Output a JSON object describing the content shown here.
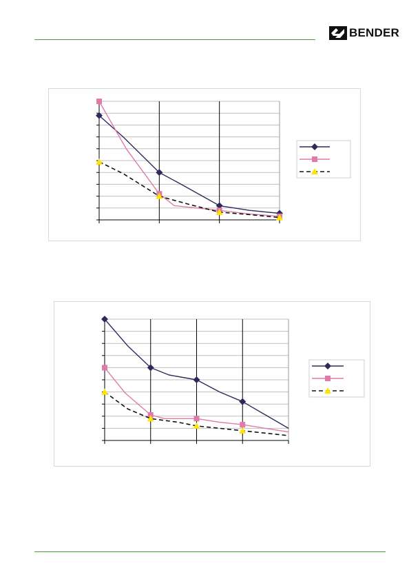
{
  "brand": {
    "name": "BENDER",
    "accent_color": "#4a9b3a"
  },
  "chart_data": [
    {
      "type": "line",
      "title": "",
      "xlabel": "",
      "ylabel": "",
      "categories": [
        0,
        1,
        2,
        3
      ],
      "ylim": [
        0,
        10
      ],
      "grid": true,
      "legend": "right",
      "series": [
        {
          "marker": "diamond",
          "color": "#2e2a5c",
          "dash": "solid",
          "values": [
            8.8,
            4.0,
            1.2,
            0.55
          ],
          "curve": [
            [
              0,
              8.8
            ],
            [
              0.4,
              7.0
            ],
            [
              1,
              4.0
            ],
            [
              1.4,
              2.9
            ],
            [
              2,
              1.2
            ],
            [
              2.5,
              0.8
            ],
            [
              3,
              0.55
            ]
          ]
        },
        {
          "marker": "square",
          "color": "#e07aa8",
          "dash": "solid",
          "values": [
            10.0,
            2.2,
            0.8,
            0.3
          ],
          "curve": [
            [
              0,
              10.0
            ],
            [
              0.45,
              6.0
            ],
            [
              1,
              2.2
            ],
            [
              1.25,
              1.2
            ],
            [
              2,
              0.8
            ],
            [
              2.5,
              0.5
            ],
            [
              3,
              0.3
            ]
          ]
        },
        {
          "marker": "triangle",
          "color": "#111111",
          "marker_color": "#ffe400",
          "dash": "dashed",
          "values": [
            4.9,
            2.0,
            0.65,
            0.2
          ],
          "curve": [
            [
              0,
              4.9
            ],
            [
              0.4,
              3.9
            ],
            [
              1,
              2.0
            ],
            [
              1.5,
              1.3
            ],
            [
              2,
              0.65
            ],
            [
              2.5,
              0.45
            ],
            [
              3,
              0.2
            ]
          ]
        }
      ]
    },
    {
      "type": "line",
      "title": "",
      "xlabel": "",
      "ylabel": "",
      "categories": [
        0,
        1,
        2,
        3,
        4
      ],
      "ylim": [
        0,
        10
      ],
      "grid": true,
      "legend": "right",
      "series": [
        {
          "marker": "diamond",
          "color": "#2e2a5c",
          "dash": "solid",
          "values": [
            10.0,
            6.0,
            5.0,
            3.2,
            1.0
          ],
          "marker_count": 4,
          "curve": [
            [
              0,
              10.0
            ],
            [
              0.5,
              7.8
            ],
            [
              1,
              6.0
            ],
            [
              1.4,
              5.4
            ],
            [
              2,
              5.0
            ],
            [
              2.5,
              4.0
            ],
            [
              3,
              3.2
            ],
            [
              3.5,
              2.1
            ],
            [
              4,
              1.0
            ]
          ]
        },
        {
          "marker": "square",
          "color": "#e07aa8",
          "dash": "solid",
          "values": [
            6.0,
            2.1,
            1.8,
            1.3,
            0.7
          ],
          "marker_count": 4,
          "curve": [
            [
              0,
              6.0
            ],
            [
              0.45,
              3.9
            ],
            [
              1,
              2.1
            ],
            [
              1.3,
              1.8
            ],
            [
              2,
              1.8
            ],
            [
              2.5,
              1.5
            ],
            [
              3,
              1.3
            ],
            [
              3.5,
              1.0
            ],
            [
              4,
              0.7
            ]
          ]
        },
        {
          "marker": "triangle",
          "color": "#111111",
          "marker_color": "#ffe400",
          "dash": "dashed",
          "values": [
            4.0,
            1.8,
            1.2,
            0.8,
            0.4
          ],
          "marker_count": 4,
          "curve": [
            [
              0,
              4.0
            ],
            [
              0.5,
              2.6
            ],
            [
              1,
              1.8
            ],
            [
              1.6,
              1.5
            ],
            [
              2,
              1.2
            ],
            [
              2.5,
              1.0
            ],
            [
              3,
              0.8
            ],
            [
              3.5,
              0.6
            ],
            [
              4,
              0.4
            ]
          ]
        }
      ]
    }
  ]
}
